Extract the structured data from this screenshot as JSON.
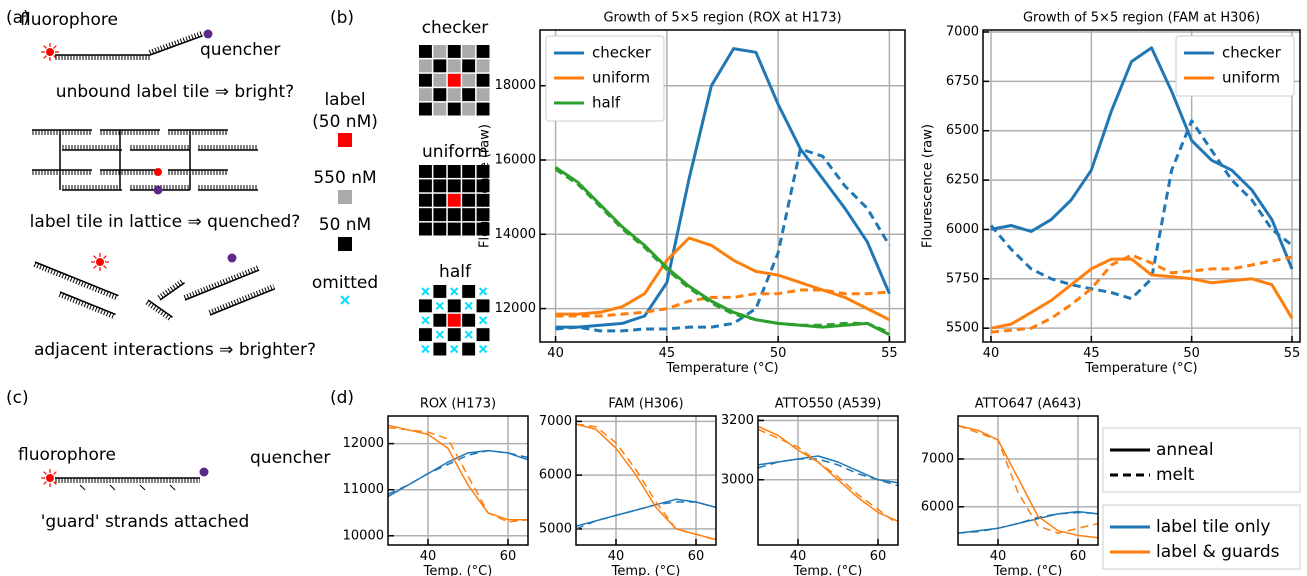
{
  "labels": {
    "a": "(a)",
    "b": "(b)",
    "c": "(c)",
    "d": "(d)"
  },
  "panel_a": {
    "fluorophore": "fluorophore",
    "quencher": "quencher",
    "captions": [
      "unbound label tile ⇒ bright?",
      "label tile in lattice ⇒ quenched?",
      "adjacent interactions ⇒ brighter?"
    ]
  },
  "panel_b_key": {
    "patterns": [
      "checker",
      "uniform",
      "half"
    ],
    "label_line1": "label",
    "label_line2": "(50 nM)",
    "high": "550 nM",
    "low": "50 nM",
    "omitted": "omitted"
  },
  "panel_c": {
    "fluorophore": "fluorophore",
    "quencher": "quencher",
    "caption": "'guard' strands attached"
  },
  "panel_d_legend": {
    "styles": [
      {
        "name": "anneal",
        "dash": "solid"
      },
      {
        "name": "melt",
        "dash": "dashed"
      }
    ],
    "series": [
      {
        "name": "label tile only",
        "color": "#1f77b4"
      },
      {
        "name": "label & guards",
        "color": "#ff7f0e"
      }
    ]
  },
  "chart_data": [
    {
      "type": "line",
      "title": "Growth of 5×5 region (ROX at H173)",
      "x_label": "Temperature (°C)",
      "y_label": "Flourescence (raw)",
      "x": [
        40,
        41,
        42,
        43,
        44,
        45,
        46,
        47,
        48,
        49,
        50,
        51,
        52,
        53,
        54,
        55
      ],
      "xlim": [
        39.3,
        55.7
      ],
      "xticks": [
        40,
        45,
        50,
        55
      ],
      "ylim": [
        11100,
        19500
      ],
      "yticks": [
        12000,
        14000,
        16000,
        18000
      ],
      "grid": true,
      "legend": "upper left",
      "series": [
        {
          "name": "checker",
          "color": "#1f77b4",
          "values": [
            11500,
            11500,
            11550,
            11600,
            11800,
            12700,
            15500,
            18000,
            19000,
            18900,
            17500,
            16300,
            15500,
            14700,
            13800,
            12400
          ],
          "melt": [
            11450,
            11500,
            11400,
            11400,
            11450,
            11450,
            11500,
            11500,
            11600,
            12000,
            13500,
            16300,
            16100,
            15300,
            14700,
            13700
          ]
        },
        {
          "name": "uniform",
          "color": "#ff7f0e",
          "values": [
            11850,
            11850,
            11900,
            12050,
            12400,
            13300,
            13900,
            13700,
            13300,
            13000,
            12900,
            12700,
            12500,
            12300,
            12000,
            11700
          ],
          "melt": [
            11800,
            11800,
            11800,
            11850,
            11900,
            12000,
            12200,
            12300,
            12300,
            12400,
            12400,
            12500,
            12500,
            12400,
            12400,
            12450
          ]
        },
        {
          "name": "half",
          "color": "#2ca02c",
          "values": [
            15800,
            15400,
            14800,
            14200,
            13700,
            13100,
            12600,
            12200,
            11900,
            11700,
            11600,
            11550,
            11500,
            11550,
            11600,
            11300
          ],
          "melt": [
            15750,
            15350,
            14750,
            14150,
            13650,
            13050,
            12550,
            12150,
            11850,
            11700,
            11600,
            11550,
            11550,
            11600,
            11600,
            11350
          ]
        }
      ]
    },
    {
      "type": "line",
      "title": "Growth of 5×5 region (FAM at H306)",
      "x_label": "Temperature (°C)",
      "y_label": "Flourescence (raw)",
      "x": [
        40,
        41,
        42,
        43,
        44,
        45,
        46,
        47,
        48,
        49,
        50,
        51,
        52,
        53,
        54,
        55
      ],
      "xlim": [
        39.6,
        55.4
      ],
      "xticks": [
        40,
        45,
        50,
        55
      ],
      "ylim": [
        5430,
        7010
      ],
      "yticks": [
        5500,
        5750,
        6000,
        6250,
        6500,
        6750,
        7000
      ],
      "grid": true,
      "legend": "upper right",
      "series": [
        {
          "name": "checker",
          "color": "#1f77b4",
          "values": [
            6000,
            6020,
            5990,
            6050,
            6150,
            6300,
            6600,
            6850,
            6920,
            6700,
            6450,
            6350,
            6300,
            6200,
            6050,
            5800
          ],
          "melt": [
            6020,
            5900,
            5800,
            5750,
            5720,
            5700,
            5680,
            5650,
            5750,
            6300,
            6550,
            6400,
            6250,
            6150,
            6000,
            5920
          ]
        },
        {
          "name": "uniform",
          "color": "#ff7f0e",
          "values": [
            5500,
            5520,
            5580,
            5640,
            5720,
            5800,
            5850,
            5850,
            5770,
            5760,
            5750,
            5730,
            5740,
            5750,
            5720,
            5550
          ],
          "melt": [
            5480,
            5490,
            5500,
            5550,
            5620,
            5700,
            5820,
            5870,
            5830,
            5780,
            5790,
            5800,
            5800,
            5820,
            5840,
            5860
          ]
        }
      ]
    },
    {
      "type": "line",
      "title": "ROX (H173)",
      "x_label": "Temp. (°C)",
      "x": [
        30,
        35,
        40,
        45,
        50,
        55,
        60,
        65
      ],
      "xlim": [
        30,
        65
      ],
      "xticks": [
        40,
        60
      ],
      "ylim": [
        9800,
        12600
      ],
      "yticks": [
        10000,
        11000,
        12000
      ],
      "grid": true,
      "series": [
        {
          "color": "#1f77b4",
          "values": [
            10850,
            11100,
            11350,
            11600,
            11800,
            11850,
            11800,
            11650
          ],
          "melt": [
            10900,
            11100,
            11350,
            11550,
            11750,
            11850,
            11800,
            11700
          ]
        },
        {
          "color": "#ff7f0e",
          "values": [
            12400,
            12300,
            12200,
            11900,
            11100,
            10500,
            10350,
            10350
          ],
          "melt": [
            12350,
            12300,
            12250,
            12100,
            11300,
            10500,
            10300,
            10350
          ]
        }
      ]
    },
    {
      "type": "line",
      "title": "FAM (H306)",
      "x_label": "Temp. (°C)",
      "x": [
        30,
        35,
        40,
        45,
        50,
        55,
        60,
        65
      ],
      "xlim": [
        30,
        65
      ],
      "xticks": [
        40,
        60
      ],
      "ylim": [
        4700,
        7100
      ],
      "yticks": [
        5000,
        6000,
        7000
      ],
      "grid": true,
      "series": [
        {
          "color": "#1f77b4",
          "values": [
            5050,
            5150,
            5250,
            5350,
            5450,
            5550,
            5500,
            5400
          ],
          "melt": [
            5000,
            5150,
            5250,
            5350,
            5450,
            5500,
            5500,
            5400
          ]
        },
        {
          "color": "#ff7f0e",
          "values": [
            6950,
            6850,
            6500,
            6000,
            5400,
            5000,
            4900,
            4800
          ],
          "melt": [
            6950,
            6900,
            6600,
            6100,
            5500,
            5000,
            4900,
            4800
          ]
        }
      ]
    },
    {
      "type": "line",
      "title": "ATTO550 (A539)",
      "x_label": "Temp. (°C)",
      "x": [
        30,
        35,
        40,
        45,
        50,
        55,
        60,
        65
      ],
      "xlim": [
        30,
        65
      ],
      "xticks": [
        40,
        60
      ],
      "ylim": [
        2780,
        3215
      ],
      "yticks": [
        3000,
        3200
      ],
      "grid": true,
      "series": [
        {
          "color": "#1f77b4",
          "values": [
            3050,
            3060,
            3070,
            3080,
            3060,
            3030,
            3000,
            2990
          ],
          "melt": [
            3040,
            3060,
            3070,
            3070,
            3050,
            3020,
            3000,
            2980
          ]
        },
        {
          "color": "#ff7f0e",
          "values": [
            3180,
            3150,
            3100,
            3060,
            3000,
            2940,
            2890,
            2860
          ],
          "melt": [
            3170,
            3140,
            3110,
            3060,
            3010,
            2950,
            2900,
            2850
          ]
        }
      ]
    },
    {
      "type": "line",
      "title": "ATTO647 (A643)",
      "x_label": "Temp. (°C)",
      "x": [
        30,
        35,
        40,
        45,
        50,
        55,
        60,
        65
      ],
      "xlim": [
        30,
        65
      ],
      "xticks": [
        40,
        60
      ],
      "ylim": [
        5200,
        7900
      ],
      "yticks": [
        6000,
        7000
      ],
      "grid": true,
      "series": [
        {
          "color": "#1f77b4",
          "values": [
            5450,
            5500,
            5550,
            5650,
            5750,
            5850,
            5900,
            5850
          ],
          "melt": [
            5450,
            5480,
            5550,
            5650,
            5780,
            5850,
            5880,
            5860
          ]
        },
        {
          "color": "#ff7f0e",
          "values": [
            7700,
            7600,
            7400,
            6600,
            5800,
            5500,
            5400,
            5350
          ],
          "melt": [
            7700,
            7550,
            7400,
            6300,
            5600,
            5450,
            5550,
            5650
          ]
        }
      ]
    }
  ]
}
